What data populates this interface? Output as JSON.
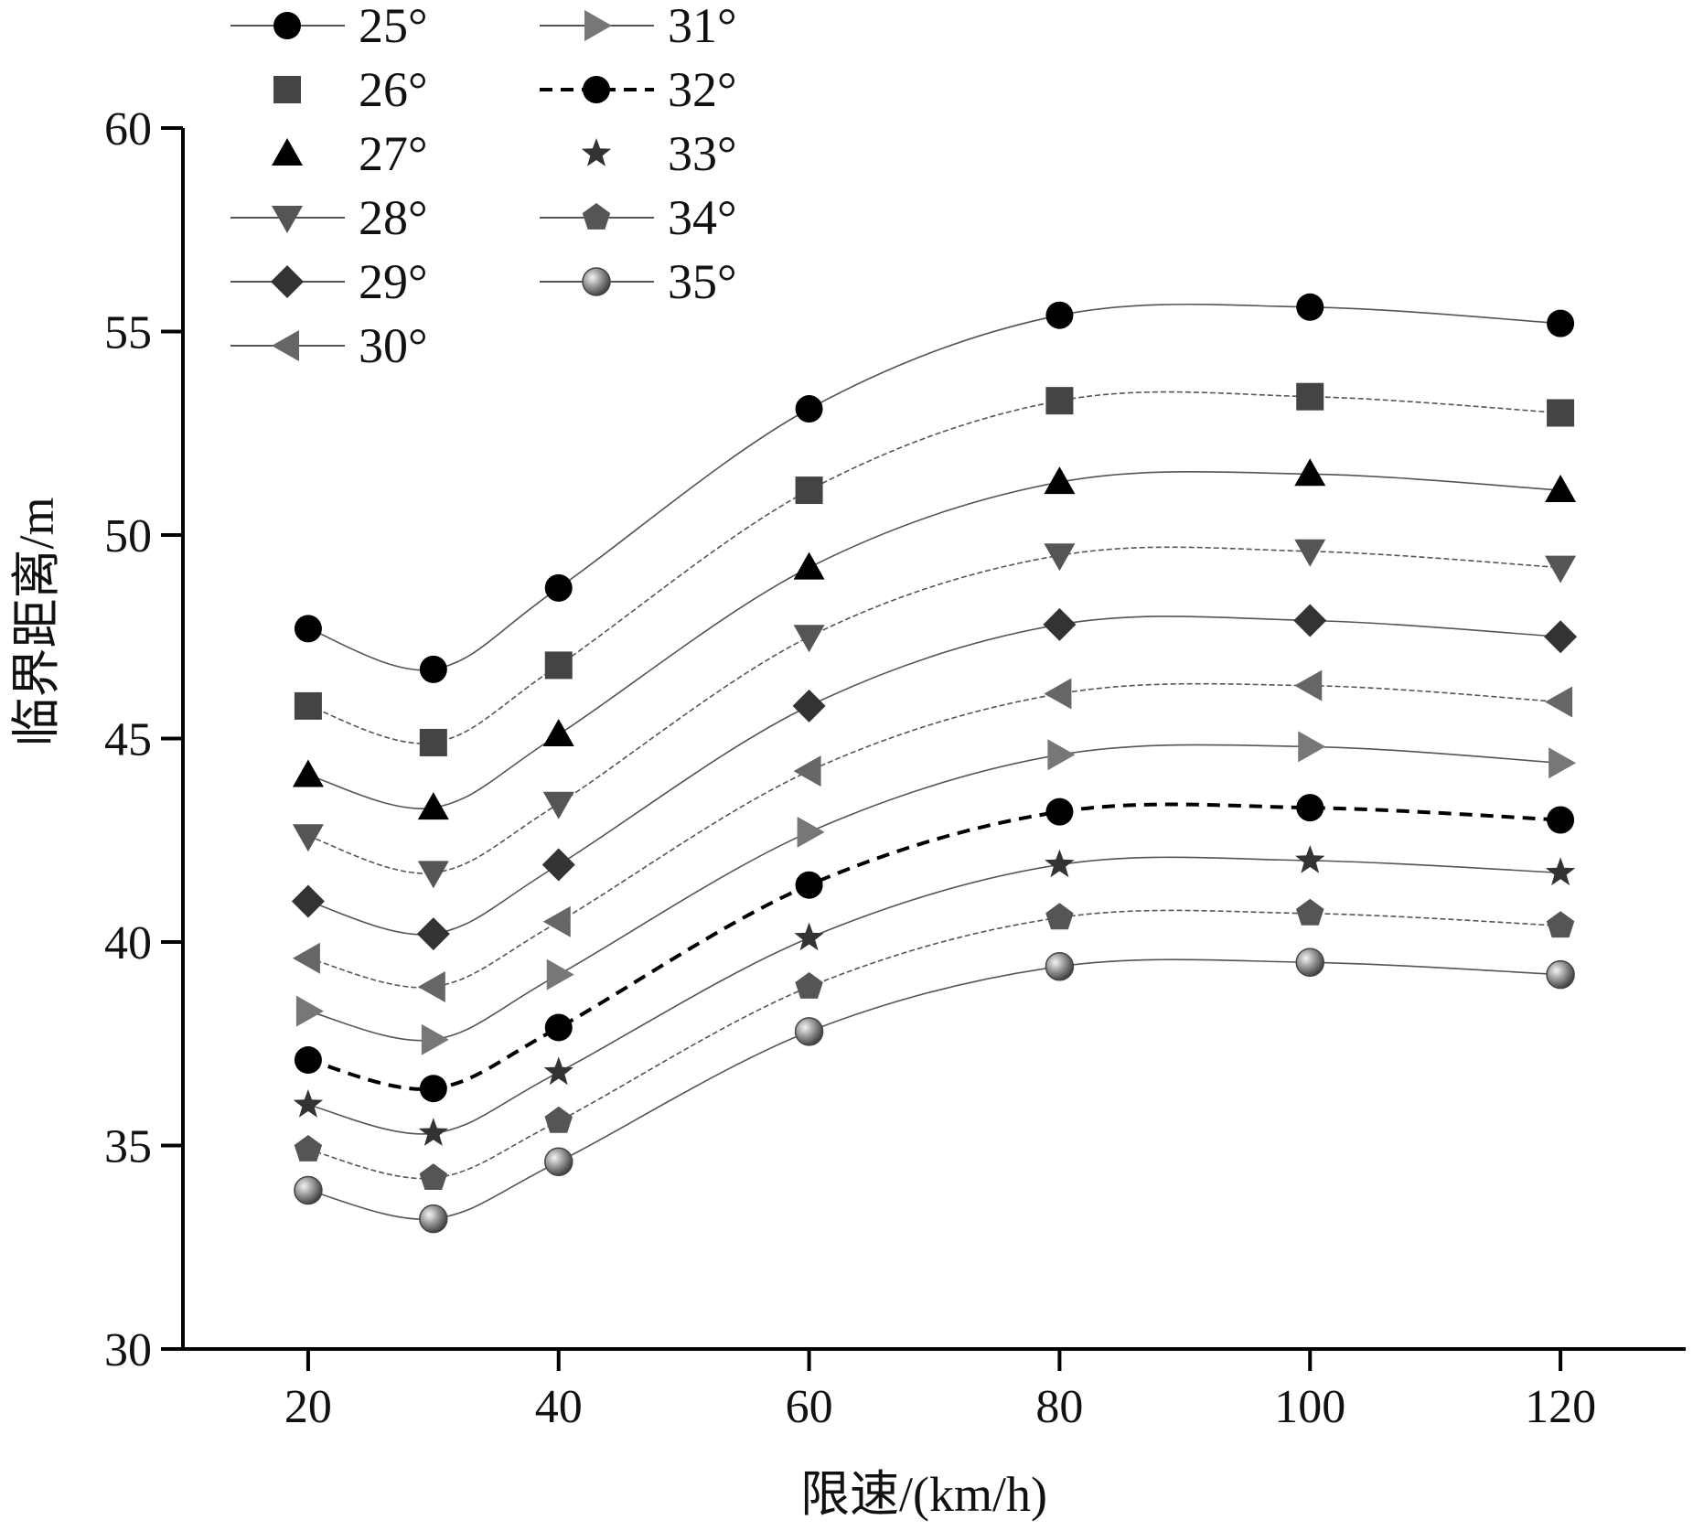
{
  "chart_data": {
    "type": "line",
    "title": "",
    "xlabel": "限速/(km/h)",
    "ylabel": "临界距离/m",
    "x": [
      20,
      30,
      40,
      60,
      80,
      100,
      120
    ],
    "x_tick_labels": [
      "20",
      "40",
      "60",
      "80",
      "100",
      "120"
    ],
    "x_ticks": [
      20,
      40,
      60,
      80,
      100,
      120
    ],
    "xlim": [
      10,
      130
    ],
    "y_tick_labels": [
      "30",
      "35",
      "40",
      "45",
      "50",
      "55",
      "60"
    ],
    "y_ticks": [
      30,
      35,
      40,
      45,
      50,
      55,
      60
    ],
    "ylim": [
      30,
      60
    ],
    "grid": false,
    "legend_position": "top-left",
    "series": [
      {
        "name": "25°",
        "marker": "circle",
        "color": "#000000",
        "dashed": false,
        "values": [
          47.7,
          46.7,
          48.7,
          53.1,
          55.4,
          55.6,
          55.2
        ]
      },
      {
        "name": "26°",
        "marker": "square",
        "color": "#444444",
        "dashed": false,
        "values": [
          45.8,
          44.9,
          46.8,
          51.1,
          53.3,
          53.4,
          53.0
        ]
      },
      {
        "name": "27°",
        "marker": "triangle-up",
        "color": "#000000",
        "dashed": false,
        "values": [
          44.1,
          43.3,
          45.1,
          49.2,
          51.3,
          51.5,
          51.1
        ]
      },
      {
        "name": "28°",
        "marker": "triangle-down",
        "color": "#555555",
        "dashed": false,
        "values": [
          42.6,
          41.7,
          43.4,
          47.5,
          49.5,
          49.6,
          49.2
        ]
      },
      {
        "name": "29°",
        "marker": "diamond",
        "color": "#333333",
        "dashed": false,
        "values": [
          41.0,
          40.2,
          41.9,
          45.8,
          47.8,
          47.9,
          47.5
        ]
      },
      {
        "name": "30°",
        "marker": "triangle-left",
        "color": "#666666",
        "dashed": false,
        "values": [
          39.6,
          38.9,
          40.5,
          44.2,
          46.1,
          46.3,
          45.9
        ]
      },
      {
        "name": "31°",
        "marker": "triangle-right",
        "color": "#777777",
        "dashed": false,
        "values": [
          38.3,
          37.6,
          39.2,
          42.7,
          44.6,
          44.8,
          44.4
        ]
      },
      {
        "name": "32°",
        "marker": "circle",
        "color": "#000000",
        "dashed": true,
        "values": [
          37.1,
          36.4,
          37.9,
          41.4,
          43.2,
          43.3,
          43.0
        ]
      },
      {
        "name": "33°",
        "marker": "star",
        "color": "#333333",
        "dashed": false,
        "values": [
          36.0,
          35.3,
          36.8,
          40.1,
          41.9,
          42.0,
          41.7
        ]
      },
      {
        "name": "34°",
        "marker": "pentagon",
        "color": "#555555",
        "dashed": false,
        "values": [
          34.9,
          34.2,
          35.6,
          38.9,
          40.6,
          40.7,
          40.4
        ]
      },
      {
        "name": "35°",
        "marker": "ball",
        "color": "#777777",
        "dashed": false,
        "values": [
          33.9,
          33.2,
          34.6,
          37.8,
          39.4,
          39.5,
          39.2
        ]
      }
    ]
  }
}
